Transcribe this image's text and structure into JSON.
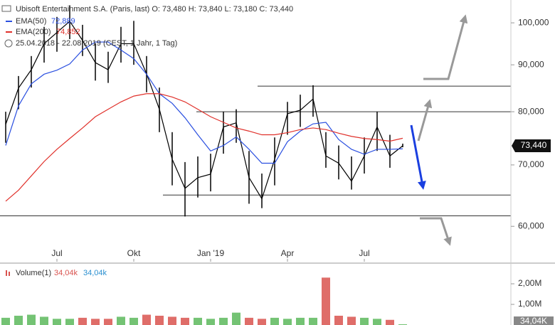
{
  "chart_data": {
    "type": "stock",
    "title": "Ubisoft Entertainment S.A. (Paris, last)  O: 73,480  H: 73,840  L: 73,180  C: 73,440",
    "date_range": "25.04.2018 - 22.08.2019 (CEST, 1 Jahr, 1 Tag)",
    "categories": [
      null,
      null,
      null,
      null,
      "Jul",
      null,
      null,
      null,
      null,
      null,
      "Okt",
      null,
      null,
      null,
      null,
      null,
      "Jan '19",
      null,
      null,
      null,
      null,
      null,
      "Apr",
      null,
      null,
      null,
      null,
      null,
      "Jul",
      null,
      null,
      null
    ],
    "log_scale": true,
    "ylim": [
      54900,
      105900
    ],
    "yticks": [
      {
        "value": 60000,
        "label": "60,000"
      },
      {
        "value": 70000,
        "label": "70,000"
      },
      {
        "value": 80000,
        "label": "80,000"
      },
      {
        "value": 90000,
        "label": "90,000"
      },
      {
        "value": 100000,
        "label": "100,000"
      }
    ],
    "price": {
      "color": "#000000",
      "close": [
        77500,
        84900,
        88900,
        94900,
        97600,
        100400,
        95700,
        90500,
        88900,
        94900,
        94900,
        88000,
        80500,
        71000,
        66000,
        67800,
        68400,
        77000,
        77800,
        67800,
        64300,
        71000,
        79600,
        80300,
        82600,
        71600,
        70300,
        67200,
        71600,
        77000,
        71600,
        73440
      ],
      "high": [
        80000,
        87500,
        92000,
        99000,
        101500,
        104500,
        99500,
        95000,
        93000,
        99000,
        100500,
        92000,
        85000,
        76000,
        70500,
        71500,
        72000,
        80000,
        80500,
        72500,
        68500,
        75000,
        82000,
        83500,
        85500,
        76000,
        73500,
        71500,
        75000,
        80000,
        75500,
        73840
      ],
      "low": [
        74000,
        80500,
        85000,
        90500,
        93000,
        96000,
        92000,
        86500,
        86000,
        90500,
        90000,
        84000,
        76000,
        66500,
        61500,
        64500,
        65500,
        72000,
        74000,
        63500,
        62800,
        66500,
        75500,
        77000,
        79000,
        69500,
        67500,
        65800,
        68500,
        72500,
        69500,
        73180
      ],
      "last_label": "73,440"
    },
    "series": [
      {
        "name": "EMA(50)",
        "color": "#2a4fe0",
        "legend_value": "72,889",
        "values": [
          73500,
          81200,
          85800,
          87900,
          88800,
          90200,
          93400,
          95300,
          95300,
          93400,
          91400,
          87900,
          83700,
          81700,
          78800,
          75500,
          72500,
          73500,
          75100,
          72800,
          70300,
          70300,
          74200,
          76200,
          77600,
          77900,
          74600,
          72800,
          71900,
          72800,
          72800,
          72889
        ]
      },
      {
        "name": "EMA(200)",
        "color": "#e0302a",
        "legend_value": "74,852",
        "values": [
          63900,
          65700,
          68100,
          70600,
          72800,
          74800,
          76800,
          79000,
          80500,
          82000,
          83200,
          83700,
          83700,
          83000,
          82000,
          80500,
          79000,
          77900,
          76800,
          76200,
          75500,
          75500,
          75900,
          76500,
          76800,
          76500,
          75800,
          75200,
          74800,
          74600,
          74300,
          74852
        ]
      }
    ],
    "levels": [
      85300,
      80000,
      64900,
      61600
    ],
    "volume": {
      "name": "Volume(1)",
      "legend_values": [
        "34,04k",
        "34,04k"
      ],
      "last_label": "34,04K",
      "up_color": "#5cb85c",
      "down_color": "#d9534f",
      "values": [
        350000,
        450000,
        500000,
        400000,
        300000,
        300000,
        350000,
        300000,
        300000,
        400000,
        350000,
        500000,
        450000,
        400000,
        350000,
        350000,
        300000,
        350000,
        600000,
        350000,
        300000,
        350000,
        300000,
        350000,
        350000,
        2300000,
        450000,
        400000,
        350000,
        300000,
        250000,
        34040
      ],
      "ylim": [
        0,
        2830000
      ],
      "yticks": [
        {
          "value": 1000000,
          "label": "1,00M"
        },
        {
          "value": 2000000,
          "label": "2,00M"
        }
      ]
    }
  }
}
